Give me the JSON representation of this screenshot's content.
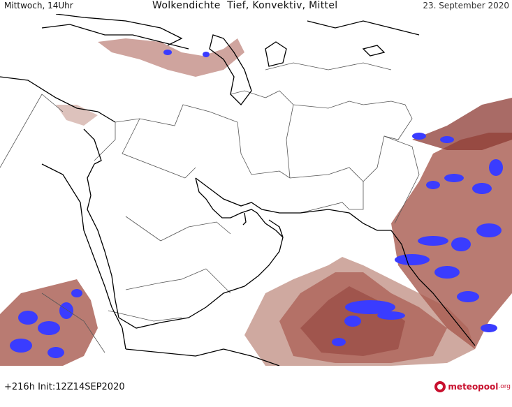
{
  "header": {
    "left": "Mittwoch, 14Uhr",
    "center": "Wolkendichte  Tief, Konvektiv, Mittel",
    "right": "23. September 2020"
  },
  "footer": {
    "run_info": "+216h Init:12Z14SEP2020"
  },
  "brand": {
    "name": "meteopool",
    "tld": ".org"
  },
  "colors": {
    "cloud_light": "#c79a8f",
    "cloud_mid": "#a85a4f",
    "cloud_dark": "#8c3a33",
    "convective": "#3a3cff",
    "coast": "#000000",
    "border": "#555555",
    "brand": "#c8102e"
  }
}
